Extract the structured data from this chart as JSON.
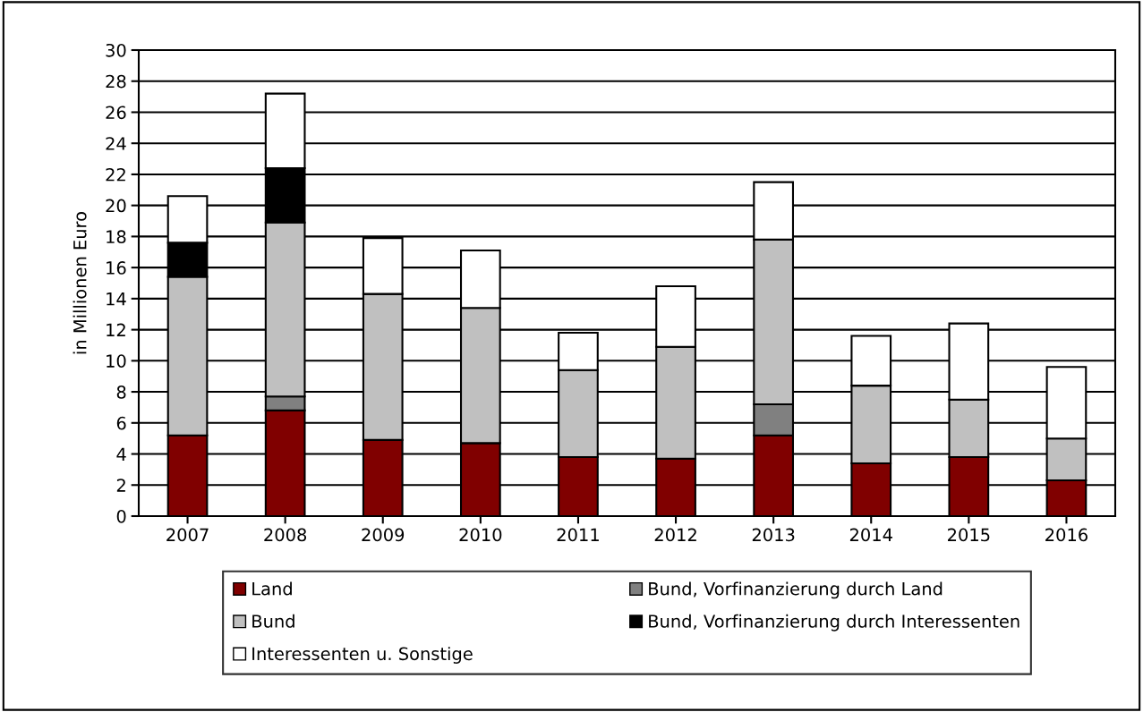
{
  "chart_data": {
    "type": "bar",
    "stacked": true,
    "ylabel": "in Millionen Euro",
    "categories": [
      "2007",
      "2008",
      "2009",
      "2010",
      "2011",
      "2012",
      "2013",
      "2014",
      "2015",
      "2016"
    ],
    "series": [
      {
        "name": "Land",
        "color": "#800000",
        "values": [
          5.2,
          6.8,
          4.9,
          4.7,
          3.8,
          3.7,
          5.2,
          3.4,
          3.8,
          2.3
        ]
      },
      {
        "name": "Bund, Vorfinanzierung durch Land",
        "color": "#808080",
        "values": [
          null,
          0.9,
          null,
          null,
          null,
          null,
          2.0,
          null,
          null,
          null
        ]
      },
      {
        "name": "Bund",
        "color": "#c0c0c0",
        "values": [
          10.2,
          11.2,
          9.4,
          8.7,
          5.6,
          7.2,
          10.6,
          5.0,
          3.7,
          2.7
        ]
      },
      {
        "name": "Bund, Vorfinanzierung durch Interessenten",
        "color": "#000000",
        "values": [
          2.2,
          3.5,
          null,
          null,
          null,
          null,
          null,
          null,
          null,
          null
        ]
      },
      {
        "name": "Interessenten u. Sonstige",
        "color": "#ffffff",
        "values": [
          3.0,
          4.8,
          3.6,
          3.7,
          2.4,
          3.9,
          3.7,
          3.2,
          4.9,
          4.6
        ]
      }
    ],
    "ylim": [
      0,
      30
    ],
    "yticks": [
      0,
      2,
      4,
      6,
      8,
      10,
      12,
      14,
      16,
      18,
      20,
      22,
      24,
      26,
      28,
      30
    ],
    "grid": "y",
    "legend": "bottom"
  }
}
